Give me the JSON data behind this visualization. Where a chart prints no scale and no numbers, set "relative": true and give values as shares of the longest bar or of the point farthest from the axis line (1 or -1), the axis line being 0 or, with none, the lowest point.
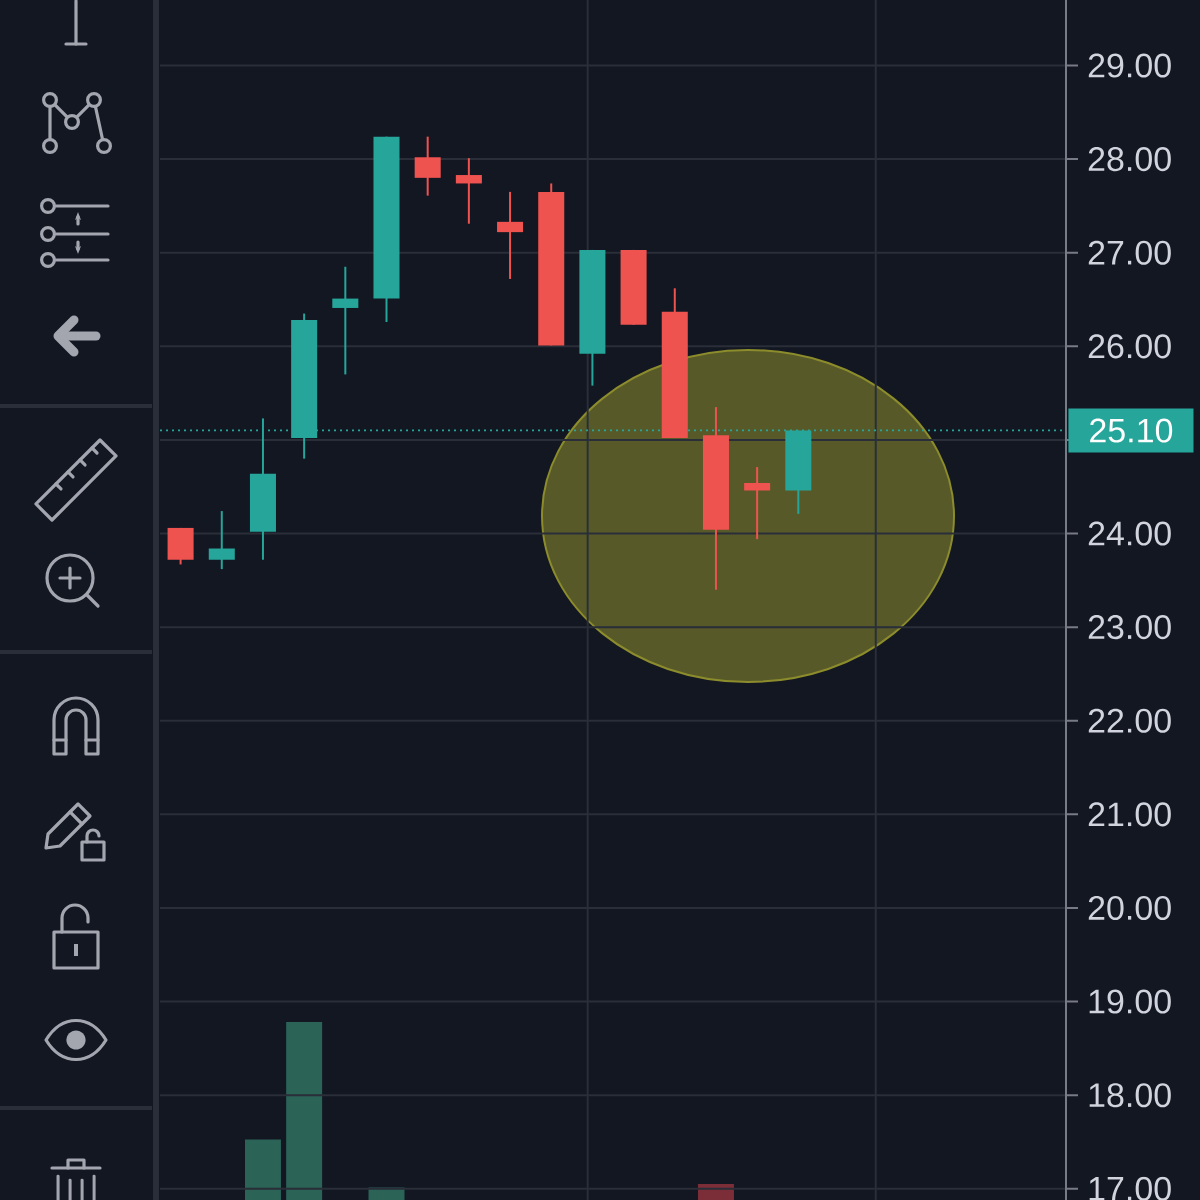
{
  "chart_data": [
    {
      "type": "candlestick",
      "categories": [
        null,
        null,
        null,
        null,
        null,
        null,
        null,
        null,
        null,
        null,
        null,
        null,
        null,
        null,
        null,
        null,
        null,
        null,
        null,
        null,
        null,
        null
      ],
      "ohlc": [
        [
          24.06,
          24.06,
          23.67,
          23.72
        ],
        [
          23.72,
          24.24,
          23.62,
          23.84
        ],
        [
          24.02,
          25.23,
          23.72,
          24.64
        ],
        [
          25.02,
          26.35,
          24.8,
          26.28
        ],
        [
          26.41,
          26.85,
          25.7,
          26.51
        ],
        [
          26.51,
          28.24,
          26.26,
          28.24
        ],
        [
          28.02,
          28.24,
          27.61,
          27.8
        ],
        [
          27.83,
          28.01,
          27.31,
          27.74
        ],
        [
          27.33,
          27.65,
          26.72,
          27.22
        ],
        [
          27.65,
          27.74,
          26.01,
          26.01
        ],
        [
          25.92,
          27.03,
          25.58,
          27.03
        ],
        [
          27.03,
          27.03,
          26.23,
          26.23
        ],
        [
          26.37,
          26.62,
          25.02,
          25.02
        ],
        [
          25.05,
          25.35,
          23.4,
          24.04
        ],
        [
          24.54,
          24.71,
          23.94,
          24.46
        ],
        [
          24.46,
          25.1,
          24.21,
          25.1
        ],
        null,
        null,
        null,
        null,
        null,
        null
      ],
      "colors": [
        "#ef5350",
        "#26a69a",
        "#26a69a",
        "#26a69a",
        "#26a69a",
        "#26a69a",
        "#ef5350",
        "#ef5350",
        "#ef5350",
        "#ef5350",
        "#26a69a",
        "#ef5350",
        "#ef5350",
        "#ef5350",
        "#ef5350",
        "#26a69a",
        null,
        null,
        null,
        null,
        null,
        null
      ],
      "ylim": [
        16.88,
        29.7
      ],
      "yticks": [
        {
          "value": 17,
          "label": "17.00"
        },
        {
          "value": 18,
          "label": "18.00"
        },
        {
          "value": 19,
          "label": "19.00"
        },
        {
          "value": 20,
          "label": "20.00"
        },
        {
          "value": 21,
          "label": "21.00"
        },
        {
          "value": 22,
          "label": "22.00"
        },
        {
          "value": 23,
          "label": "23.00"
        },
        {
          "value": 24,
          "label": "24.00"
        },
        {
          "value": 25,
          "label": null
        },
        {
          "value": 26,
          "label": "26.00"
        },
        {
          "value": 27,
          "label": "27.00"
        },
        {
          "value": 28,
          "label": "28.00"
        },
        {
          "value": 29,
          "label": "29.00"
        }
      ],
      "grid": "y",
      "ref_lines": [
        {
          "axis": "y",
          "value": 25.1,
          "label": "25.10",
          "color": "#26a69a",
          "line_style": "dotted"
        }
      ]
    },
    {
      "type": "bar",
      "relative": true,
      "categories": [
        null,
        null,
        null,
        null,
        null,
        null,
        null,
        null,
        null,
        null,
        null,
        null,
        null,
        null,
        null,
        null,
        null,
        null,
        null,
        null,
        null,
        null
      ],
      "values": [
        0,
        0,
        0.34,
        1,
        0,
        0.07,
        0,
        0,
        0,
        0,
        0,
        0,
        0,
        0.09,
        0,
        0,
        null,
        null,
        null,
        null,
        null,
        null
      ],
      "colors": [
        "#2b6356",
        "#2b6356",
        "#2b6356",
        "#2b6356",
        "#2b6356",
        "#2b6356",
        "#7b2e37",
        "#7b2e37",
        "#7b2e37",
        "#7b2e37",
        "#2b6356",
        "#7b2e37",
        "#7b2e37",
        "#7b2e37",
        "#7b2e37",
        "#2b6356",
        null,
        null,
        null,
        null,
        null,
        null
      ]
    }
  ]
}
